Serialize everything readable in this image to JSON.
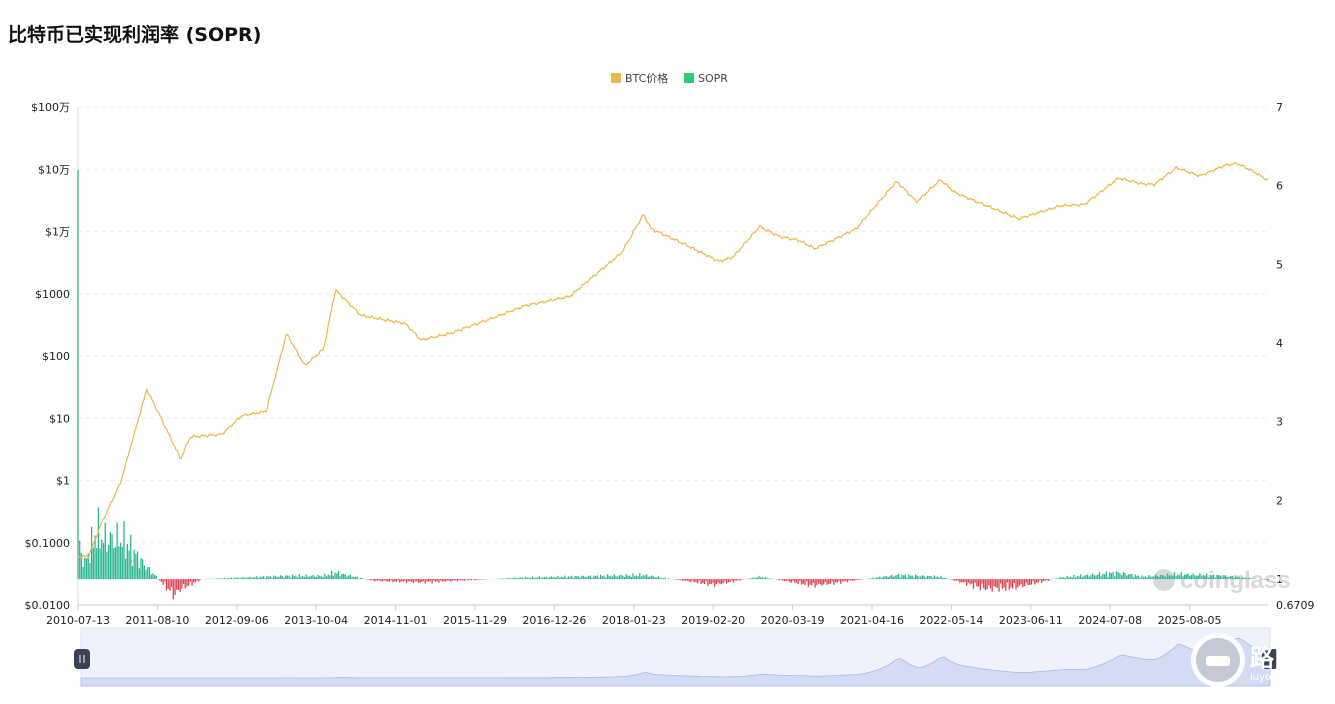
{
  "title": "比特币已实现利润率 (SOPR)",
  "chart_data": {
    "type": "line",
    "legend": [
      {
        "name": "BTC价格",
        "color": "#e8b84a"
      },
      {
        "name": "SOPR",
        "color": "#2ecc71"
      }
    ],
    "legend_position": "top-center",
    "grid": true,
    "y_left": {
      "scale": "log",
      "range": [
        0.01,
        1000000
      ],
      "tick_labels": [
        "$100万",
        "$10万",
        "$1万",
        "$1000",
        "$100",
        "$10",
        "$1",
        "$0.1000",
        "$0.0100"
      ]
    },
    "y_right": {
      "range": [
        0.6709,
        7
      ],
      "tick_labels": [
        "7",
        "6",
        "5",
        "4",
        "3",
        "2",
        "1",
        "0.6709"
      ]
    },
    "x_tick_labels": [
      "2010-07-13",
      "2011-08-10",
      "2012-09-06",
      "2013-10-04",
      "2014-11-01",
      "2015-11-29",
      "2016-12-26",
      "2018-01-23",
      "2019-02-20",
      "2020-03-19",
      "2021-04-16",
      "2022-05-14",
      "2023-06-11",
      "2024-07-08",
      "2025-08-05"
    ],
    "series": [
      {
        "name": "BTC价格",
        "axis": "left",
        "x": [
          "2010-07-13",
          "2010-09-01",
          "2010-11-01",
          "2011-02-01",
          "2011-06-08",
          "2011-08-10",
          "2011-11-18",
          "2012-01-01",
          "2012-06-01",
          "2012-09-06",
          "2013-01-01",
          "2013-04-09",
          "2013-07-05",
          "2013-10-04",
          "2013-11-29",
          "2014-04-01",
          "2014-11-01",
          "2015-01-14",
          "2015-06-01",
          "2015-11-29",
          "2016-06-01",
          "2016-12-26",
          "2017-06-01",
          "2017-09-01",
          "2017-12-17",
          "2018-01-23",
          "2018-06-01",
          "2018-12-15",
          "2019-02-20",
          "2019-06-26",
          "2019-10-01",
          "2020-01-01",
          "2020-03-19",
          "2020-10-01",
          "2021-04-14",
          "2021-07-20",
          "2021-11-10",
          "2022-01-20",
          "2022-05-14",
          "2022-11-21",
          "2023-06-11",
          "2023-10-01",
          "2024-03-14",
          "2024-07-08",
          "2024-09-01",
          "2024-12-17",
          "2025-04-08",
          "2025-08-05",
          "2025-10-06",
          "2026-01-01",
          "2026-03-01"
        ],
        "values": [
          0.06,
          0.06,
          0.2,
          0.9,
          29,
          11,
          2.2,
          5,
          5.5,
          11,
          13,
          230,
          70,
          130,
          1150,
          450,
          330,
          180,
          230,
          380,
          650,
          900,
          2500,
          4500,
          19000,
          11000,
          7000,
          3300,
          3900,
          12000,
          8300,
          7200,
          5300,
          11000,
          64000,
          30000,
          68000,
          42000,
          29000,
          16000,
          26000,
          27000,
          72000,
          58000,
          57000,
          106000,
          78000,
          115000,
          124000,
          88000,
          66000
        ]
      },
      {
        "name": "SOPR",
        "axis": "right",
        "baseline": 1,
        "color_above": "#2bb591",
        "color_below": "#e0404f",
        "x": [
          "2010-07-13",
          "2010-07-20",
          "2010-08-15",
          "2010-10-10",
          "2010-11-15",
          "2011-02-10",
          "2011-06-08",
          "2011-09-10",
          "2011-10-20",
          "2011-11-18",
          "2012-03-01",
          "2013-04-10",
          "2013-10-04",
          "2013-11-29",
          "2014-06-01",
          "2015-01-14",
          "2016-06-01",
          "2017-12-17",
          "2018-11-20",
          "2019-06-26",
          "2020-03-12",
          "2021-04-14",
          "2021-11-10",
          "2022-06-18",
          "2022-11-10",
          "2023-06-11",
          "2024-03-14",
          "2024-07-08",
          "2025-01-01",
          "2025-08-05",
          "2026-03-01"
        ],
        "values": [
          6.2,
          1.4,
          1.2,
          1.6,
          1.5,
          1.5,
          1.15,
          0.9,
          0.8,
          0.88,
          1.0,
          1.04,
          1.04,
          1.08,
          0.98,
          0.96,
          1.02,
          1.05,
          0.93,
          1.03,
          0.92,
          1.05,
          1.03,
          0.88,
          0.9,
          1.02,
          1.08,
          1.03,
          1.06,
          1.04,
          0.99
        ]
      }
    ]
  },
  "watermark": "coinglass",
  "watermark2": {
    "text": "路由器",
    "sub": "luyouqi.com"
  }
}
